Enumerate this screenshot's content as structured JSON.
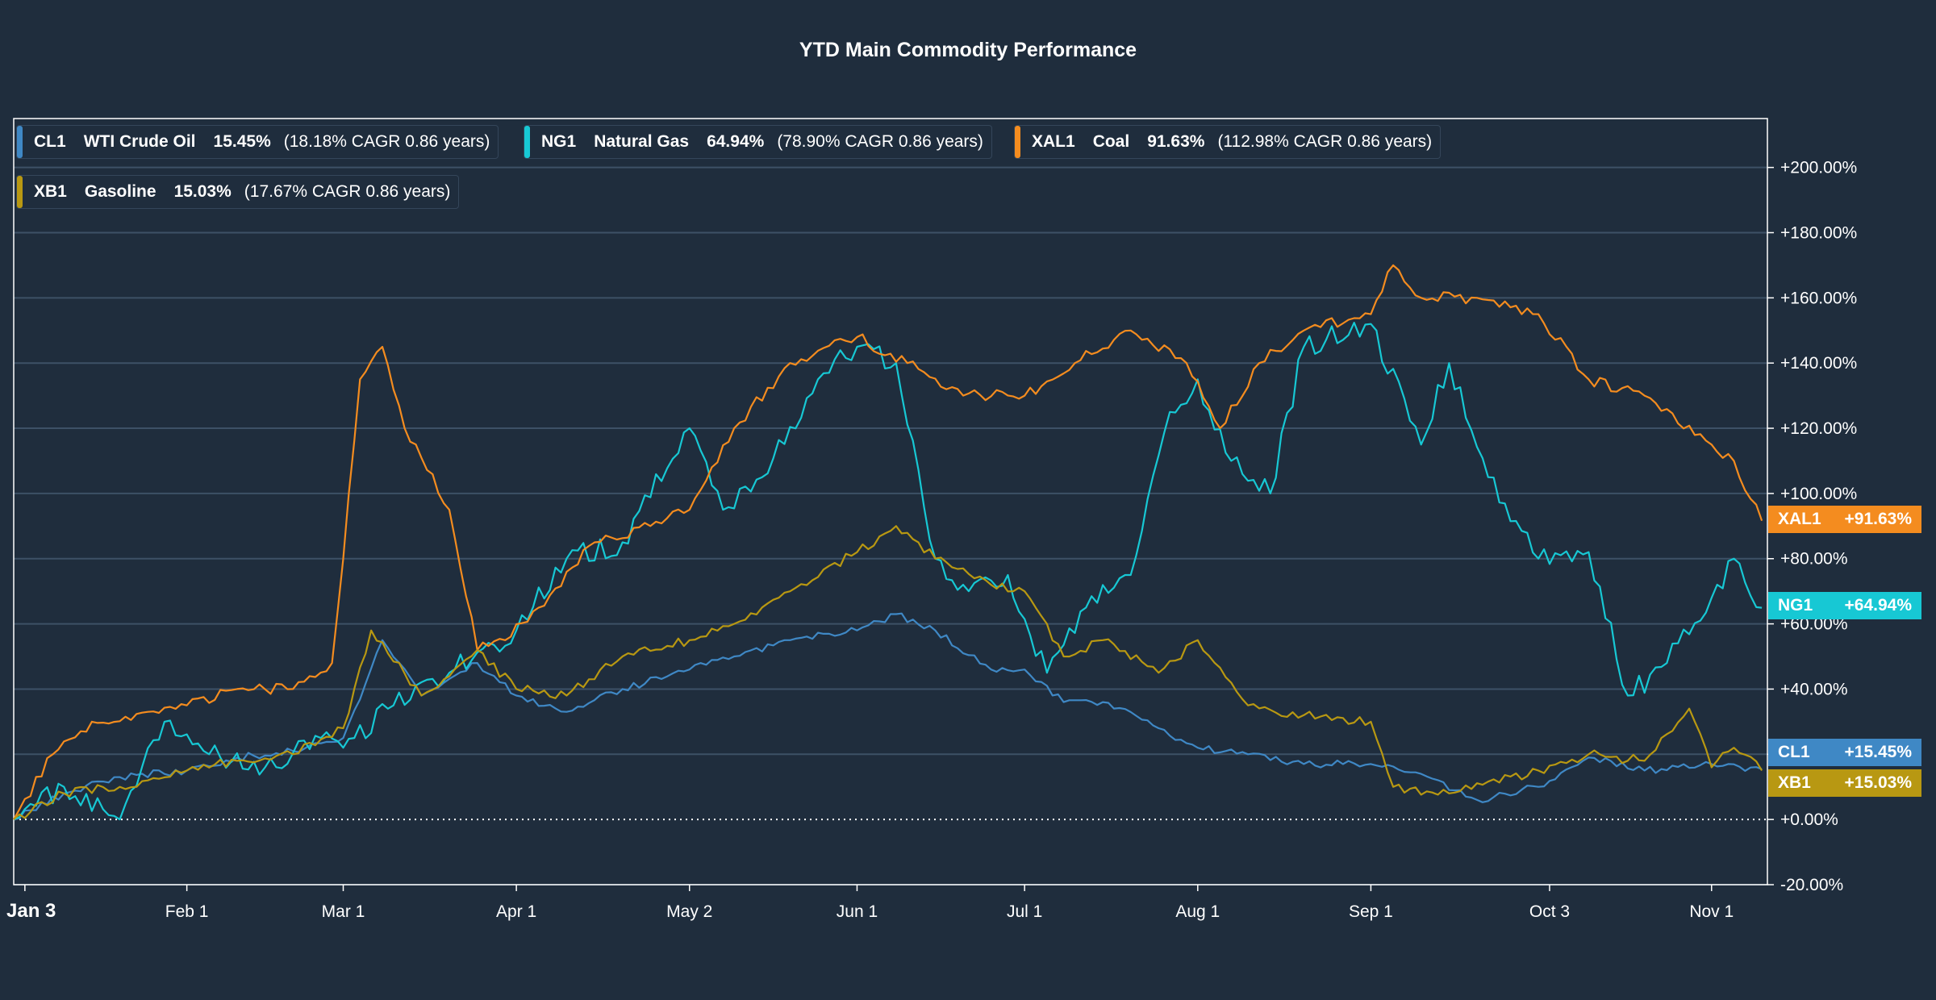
{
  "chart_data": {
    "type": "line",
    "title": "YTD Main Commodity Performance",
    "xlabel": "",
    "ylabel": "",
    "ylim": [
      -20,
      215
    ],
    "y_ticks": [
      "+200.00%",
      "+180.00%",
      "+160.00%",
      "+140.00%",
      "+120.00%",
      "+100.00%",
      "+80.00%",
      "+60.00%",
      "+40.00%",
      "+20.00%",
      "+0.00%",
      "-20.00%"
    ],
    "y_tick_values": [
      200,
      180,
      160,
      140,
      120,
      100,
      80,
      60,
      40,
      20,
      0,
      -20
    ],
    "x_tick_labels": [
      "Jan 3",
      "Feb 1",
      "Mar 1",
      "Apr 1",
      "May 2",
      "Jun 1",
      "Jul 1",
      "Aug 1",
      "Sep 1",
      "Oct 3",
      "Nov 1"
    ],
    "x_tick_dates": [
      "2022-01-03",
      "2022-02-01",
      "2022-03-01",
      "2022-04-01",
      "2022-05-02",
      "2022-06-01",
      "2022-07-01",
      "2022-08-01",
      "2022-09-01",
      "2022-10-03",
      "2022-11-01"
    ],
    "x_range": [
      "2022-01-01",
      "2022-11-11"
    ],
    "grid": true,
    "legend_position": "top-left",
    "zero_line": "dotted",
    "series": [
      {
        "symbol": "CL1",
        "name": "WTI Crude Oil",
        "return": "15.45%",
        "cagr": "(18.18% CAGR 0.86 years)",
        "end_label": "+15.45%",
        "color": "#3f88c5",
        "x": [
          "2022-01-01",
          "2022-01-10",
          "2022-01-20",
          "2022-02-01",
          "2022-02-10",
          "2022-02-20",
          "2022-03-01",
          "2022-03-08",
          "2022-03-15",
          "2022-03-25",
          "2022-04-01",
          "2022-04-10",
          "2022-04-20",
          "2022-05-02",
          "2022-05-10",
          "2022-05-20",
          "2022-06-01",
          "2022-06-08",
          "2022-06-15",
          "2022-06-25",
          "2022-07-01",
          "2022-07-08",
          "2022-07-15",
          "2022-07-25",
          "2022-08-01",
          "2022-08-10",
          "2022-08-20",
          "2022-09-01",
          "2022-09-10",
          "2022-09-20",
          "2022-10-01",
          "2022-10-10",
          "2022-10-20",
          "2022-11-01",
          "2022-11-10"
        ],
        "y": [
          0,
          8,
          13,
          15,
          19,
          21,
          25,
          55,
          38,
          48,
          38,
          33,
          40,
          46,
          50,
          55,
          58,
          63,
          58,
          46,
          46,
          36,
          36,
          28,
          22,
          20,
          17,
          17,
          14,
          6,
          10,
          19,
          15,
          17,
          15.45
        ]
      },
      {
        "symbol": "NG1",
        "name": "Natural Gas",
        "return": "64.94%",
        "cagr": "(78.90% CAGR 0.86 years)",
        "end_label": "+64.94%",
        "color": "#17c8d4",
        "x": [
          "2022-01-01",
          "2022-01-10",
          "2022-01-20",
          "2022-01-28",
          "2022-02-05",
          "2022-02-15",
          "2022-02-25",
          "2022-03-01",
          "2022-03-10",
          "2022-03-20",
          "2022-04-01",
          "2022-04-10",
          "2022-04-20",
          "2022-05-02",
          "2022-05-08",
          "2022-05-15",
          "2022-05-25",
          "2022-06-01",
          "2022-06-08",
          "2022-06-15",
          "2022-06-20",
          "2022-06-28",
          "2022-07-05",
          "2022-07-12",
          "2022-07-20",
          "2022-07-27",
          "2022-08-01",
          "2022-08-07",
          "2022-08-14",
          "2022-08-20",
          "2022-09-01",
          "2022-09-10",
          "2022-09-15",
          "2022-09-22",
          "2022-10-01",
          "2022-10-10",
          "2022-10-17",
          "2022-10-24",
          "2022-11-01",
          "2022-11-05",
          "2022-11-10"
        ],
        "y": [
          0,
          10,
          0,
          30,
          20,
          16,
          25,
          22,
          35,
          45,
          58,
          80,
          85,
          120,
          95,
          105,
          135,
          145,
          140,
          80,
          72,
          75,
          45,
          65,
          75,
          125,
          135,
          110,
          100,
          145,
          152,
          115,
          140,
          105,
          80,
          82,
          38,
          48,
          68,
          80,
          64.94
        ]
      },
      {
        "symbol": "XAL1",
        "name": "Coal",
        "return": "91.63%",
        "cagr": "(112.98% CAGR 0.86 years)",
        "end_label": "+91.63%",
        "color": "#f48c1f",
        "x": [
          "2022-01-01",
          "2022-01-08",
          "2022-01-15",
          "2022-01-25",
          "2022-02-01",
          "2022-02-10",
          "2022-02-20",
          "2022-02-27",
          "2022-03-01",
          "2022-03-04",
          "2022-03-08",
          "2022-03-12",
          "2022-03-20",
          "2022-03-25",
          "2022-03-30",
          "2022-04-05",
          "2022-04-15",
          "2022-04-25",
          "2022-05-02",
          "2022-05-10",
          "2022-05-20",
          "2022-06-01",
          "2022-06-10",
          "2022-06-20",
          "2022-07-01",
          "2022-07-10",
          "2022-07-20",
          "2022-07-30",
          "2022-08-05",
          "2022-08-12",
          "2022-08-20",
          "2022-09-01",
          "2022-09-05",
          "2022-09-10",
          "2022-09-20",
          "2022-10-01",
          "2022-10-10",
          "2022-10-20",
          "2022-11-01",
          "2022-11-05",
          "2022-11-10"
        ],
        "y": [
          0,
          20,
          30,
          33,
          35,
          40,
          40,
          48,
          80,
          135,
          145,
          120,
          95,
          52,
          55,
          65,
          85,
          90,
          95,
          120,
          140,
          148,
          140,
          130,
          130,
          140,
          150,
          140,
          120,
          140,
          150,
          155,
          170,
          160,
          160,
          155,
          135,
          130,
          115,
          110,
          91.63
        ]
      },
      {
        "symbol": "XB1",
        "name": "Gasoline",
        "return": "15.03%",
        "cagr": "(17.67% CAGR 0.86 years)",
        "end_label": "+15.03%",
        "color": "#b89812",
        "x": [
          "2022-01-01",
          "2022-01-10",
          "2022-01-20",
          "2022-02-01",
          "2022-02-10",
          "2022-02-20",
          "2022-03-01",
          "2022-03-06",
          "2022-03-15",
          "2022-03-25",
          "2022-04-01",
          "2022-04-10",
          "2022-04-20",
          "2022-05-02",
          "2022-05-10",
          "2022-05-20",
          "2022-06-01",
          "2022-06-08",
          "2022-06-15",
          "2022-06-25",
          "2022-07-01",
          "2022-07-08",
          "2022-07-15",
          "2022-07-25",
          "2022-08-01",
          "2022-08-10",
          "2022-08-20",
          "2022-09-01",
          "2022-09-05",
          "2022-09-15",
          "2022-10-01",
          "2022-10-10",
          "2022-10-20",
          "2022-10-28",
          "2022-11-01",
          "2022-11-05",
          "2022-11-10"
        ],
        "y": [
          0,
          8,
          10,
          15,
          18,
          20,
          28,
          58,
          38,
          52,
          40,
          38,
          50,
          55,
          60,
          70,
          82,
          90,
          80,
          72,
          70,
          50,
          55,
          45,
          55,
          35,
          32,
          30,
          10,
          8,
          15,
          20,
          18,
          34,
          16,
          22,
          15.03
        ]
      }
    ]
  }
}
